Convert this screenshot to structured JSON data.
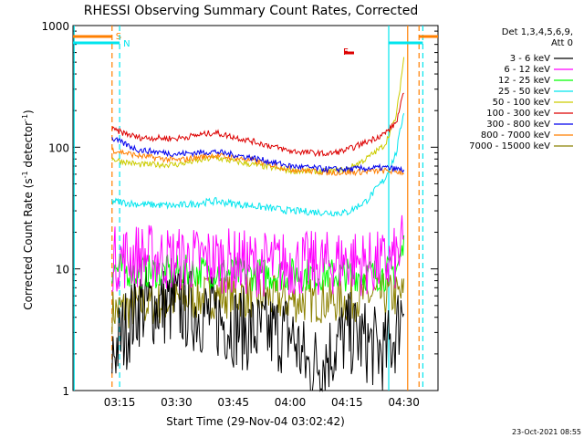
{
  "chart_data": {
    "type": "line",
    "title": "RHESSI Observing Summary Count Rates, Corrected",
    "xlabel": "Start Time (29-Nov-04 03:02:42)",
    "ylabel": "Corrected Count Rate (s",
    "ylabel_sup": "-1",
    "ylabel_tail": " detector",
    "ylabel_close": ")",
    "y_scale": "log",
    "ylim": [
      1,
      1000
    ],
    "y_tick_labels": [
      "1",
      "10",
      "100",
      "1000"
    ],
    "xlim": [
      "03:02:42",
      "04:39:00"
    ],
    "x_ticks": [
      "03:15",
      "03:30",
      "03:45",
      "04:00",
      "04:15",
      "04:30"
    ],
    "timestamp": "23-Oct-2021 08:55",
    "legend": {
      "placement": "right",
      "header": [
        "Det 1,3,4,5,6,9,",
        "Att 0"
      ]
    },
    "markers": [
      {
        "label": "S",
        "time": "03:13",
        "color": "#ff7f00",
        "style": "dashed"
      },
      {
        "label": "N",
        "time": "03:15",
        "color": "#00e5ee",
        "style": "dashed"
      },
      {
        "label": "F",
        "time": "04:13",
        "color": "#dd0000",
        "style": "bar"
      }
    ],
    "region_lines": [
      {
        "time": "03:03",
        "color": "#00e5ee",
        "style": "solid"
      },
      {
        "time": "04:26",
        "color": "#00e5ee",
        "style": "solid"
      },
      {
        "time": "04:31",
        "color": "#ff7f00",
        "style": "solid"
      },
      {
        "time": "04:34",
        "color": "#ff7f00",
        "style": "dashed"
      },
      {
        "time": "04:35",
        "color": "#00e5ee",
        "style": "dashed"
      }
    ],
    "series": [
      {
        "name": "3 - 6 keV",
        "color": "#000000",
        "x": [
          "03:13",
          "03:20",
          "03:30",
          "03:40",
          "03:50",
          "04:00",
          "04:05",
          "04:10",
          "04:15",
          "04:20",
          "04:25",
          "04:28",
          "04:30"
        ],
        "values": [
          2,
          5,
          5,
          4,
          3,
          3,
          1.5,
          2,
          3,
          2.5,
          2,
          3,
          6
        ]
      },
      {
        "name": "6 - 12 keV",
        "color": "#ff00ff",
        "x": [
          "03:13",
          "03:20",
          "03:30",
          "03:40",
          "03:50",
          "04:00",
          "04:10",
          "04:15",
          "04:20",
          "04:25",
          "04:28",
          "04:30"
        ],
        "values": [
          12,
          13,
          12,
          12,
          11,
          11,
          11,
          12,
          11,
          11,
          12,
          16
        ]
      },
      {
        "name": "12 - 25 keV",
        "color": "#00ff00",
        "x": [
          "03:13",
          "03:20",
          "03:30",
          "03:40",
          "03:50",
          "04:00",
          "04:10",
          "04:15",
          "04:20",
          "04:25",
          "04:28",
          "04:30"
        ],
        "values": [
          10,
          9.5,
          9.5,
          9.5,
          9,
          9,
          9,
          9,
          9,
          9,
          10,
          15
        ]
      },
      {
        "name": "25 - 50 keV",
        "color": "#00e5ee",
        "x": [
          "03:13",
          "03:20",
          "03:30",
          "03:40",
          "03:50",
          "04:00",
          "04:10",
          "04:15",
          "04:20",
          "04:25",
          "04:28",
          "04:30"
        ],
        "values": [
          36,
          34,
          33,
          36,
          33,
          30,
          29,
          29,
          36,
          55,
          90,
          200
        ]
      },
      {
        "name": "50 - 100 keV",
        "color": "#cccc00",
        "x": [
          "03:13",
          "03:20",
          "03:30",
          "03:40",
          "03:50",
          "04:00",
          "04:10",
          "04:15",
          "04:20",
          "04:25",
          "04:28",
          "04:30"
        ],
        "values": [
          80,
          72,
          72,
          82,
          72,
          64,
          63,
          66,
          80,
          105,
          180,
          550
        ]
      },
      {
        "name": "100 - 300 keV",
        "color": "#dd0000",
        "x": [
          "03:13",
          "03:20",
          "03:30",
          "03:40",
          "03:50",
          "04:00",
          "04:10",
          "04:15",
          "04:20",
          "04:25",
          "04:28",
          "04:30"
        ],
        "values": [
          140,
          120,
          118,
          132,
          112,
          93,
          88,
          95,
          110,
          130,
          160,
          280
        ]
      },
      {
        "name": "300 - 800 keV",
        "color": "#0000ee",
        "x": [
          "03:13",
          "03:20",
          "03:30",
          "03:40",
          "03:50",
          "04:00",
          "04:10",
          "04:15",
          "04:20",
          "04:25",
          "04:28",
          "04:30"
        ],
        "values": [
          118,
          95,
          88,
          92,
          82,
          70,
          66,
          66,
          67,
          68,
          66,
          65
        ]
      },
      {
        "name": "800 - 7000 keV",
        "color": "#ff7f00",
        "x": [
          "03:13",
          "03:20",
          "03:30",
          "03:40",
          "03:50",
          "04:00",
          "04:10",
          "04:15",
          "04:20",
          "04:25",
          "04:28",
          "04:30"
        ],
        "values": [
          95,
          85,
          78,
          86,
          78,
          66,
          62,
          62,
          63,
          64,
          63,
          62
        ]
      },
      {
        "name": "7000 - 15000 keV",
        "color": "#8b8000",
        "x": [
          "03:13",
          "03:20",
          "03:30",
          "03:40",
          "03:50",
          "04:00",
          "04:10",
          "04:15",
          "04:20",
          "04:25",
          "04:28",
          "04:30"
        ],
        "values": [
          4.5,
          5,
          5.5,
          6,
          6,
          5.5,
          5.5,
          5.5,
          6,
          6,
          6,
          6
        ]
      }
    ]
  }
}
